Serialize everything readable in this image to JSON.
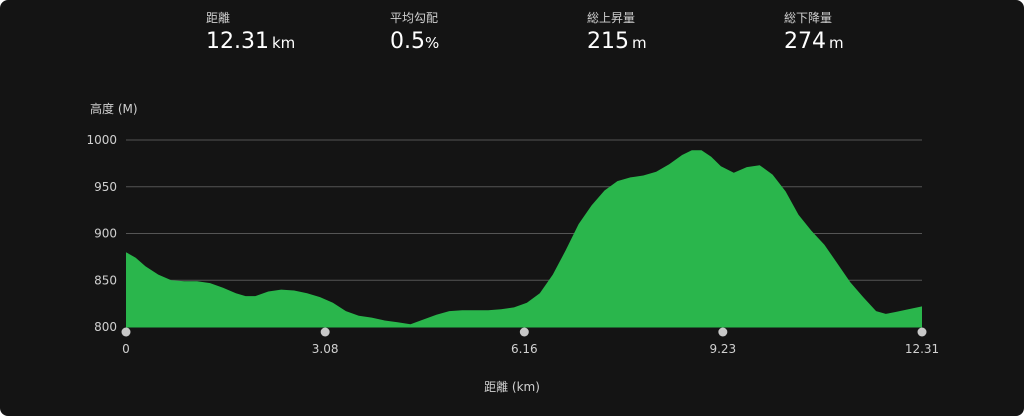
{
  "stats": [
    {
      "label": "距離",
      "value": "12.31",
      "unit": "km"
    },
    {
      "label": "平均勾配",
      "value": "0.5",
      "unit": "%"
    },
    {
      "label": "総上昇量",
      "value": "215",
      "unit": "m"
    },
    {
      "label": "総下降量",
      "value": "274",
      "unit": "m"
    }
  ],
  "colors": {
    "background": "#141414",
    "fill": "#2ab64c",
    "grid": "#555555",
    "text": "#d0d0d0",
    "marker": "#c8c8c8"
  },
  "chart_data": {
    "type": "area",
    "ylabel": "高度 (M)",
    "xlabel": "距離 (km)",
    "xlim": [
      0,
      12.31
    ],
    "ylim": [
      800,
      1000
    ],
    "yticks": [
      "800",
      "850",
      "900",
      "950",
      "1000"
    ],
    "xticks": [
      "0",
      "3.08",
      "6.16",
      "9.23",
      "12.31"
    ],
    "grid": true,
    "x": [
      0,
      0.15,
      0.3,
      0.5,
      0.7,
      0.9,
      1.1,
      1.3,
      1.5,
      1.7,
      1.85,
      2.0,
      2.2,
      2.4,
      2.6,
      2.8,
      3.0,
      3.2,
      3.4,
      3.6,
      3.8,
      4.0,
      4.2,
      4.4,
      4.6,
      4.8,
      5.0,
      5.2,
      5.4,
      5.6,
      5.8,
      6.0,
      6.2,
      6.4,
      6.6,
      6.8,
      7.0,
      7.2,
      7.4,
      7.6,
      7.8,
      8.0,
      8.2,
      8.4,
      8.6,
      8.75,
      8.9,
      9.05,
      9.2,
      9.4,
      9.6,
      9.8,
      10.0,
      10.2,
      10.4,
      10.6,
      10.8,
      11.0,
      11.2,
      11.4,
      11.6,
      11.75,
      11.9,
      12.1,
      12.31
    ],
    "y": [
      880,
      874,
      865,
      856,
      850,
      849,
      849,
      847,
      842,
      836,
      833,
      833,
      838,
      840,
      839,
      836,
      832,
      826,
      817,
      812,
      810,
      807,
      805,
      803,
      808,
      813,
      817,
      818,
      818,
      818,
      819,
      821,
      826,
      836,
      856,
      882,
      910,
      930,
      946,
      956,
      960,
      962,
      966,
      974,
      984,
      989,
      989,
      982,
      972,
      965,
      971,
      973,
      963,
      945,
      920,
      903,
      888,
      868,
      848,
      832,
      817,
      814,
      816,
      819,
      822
    ]
  }
}
